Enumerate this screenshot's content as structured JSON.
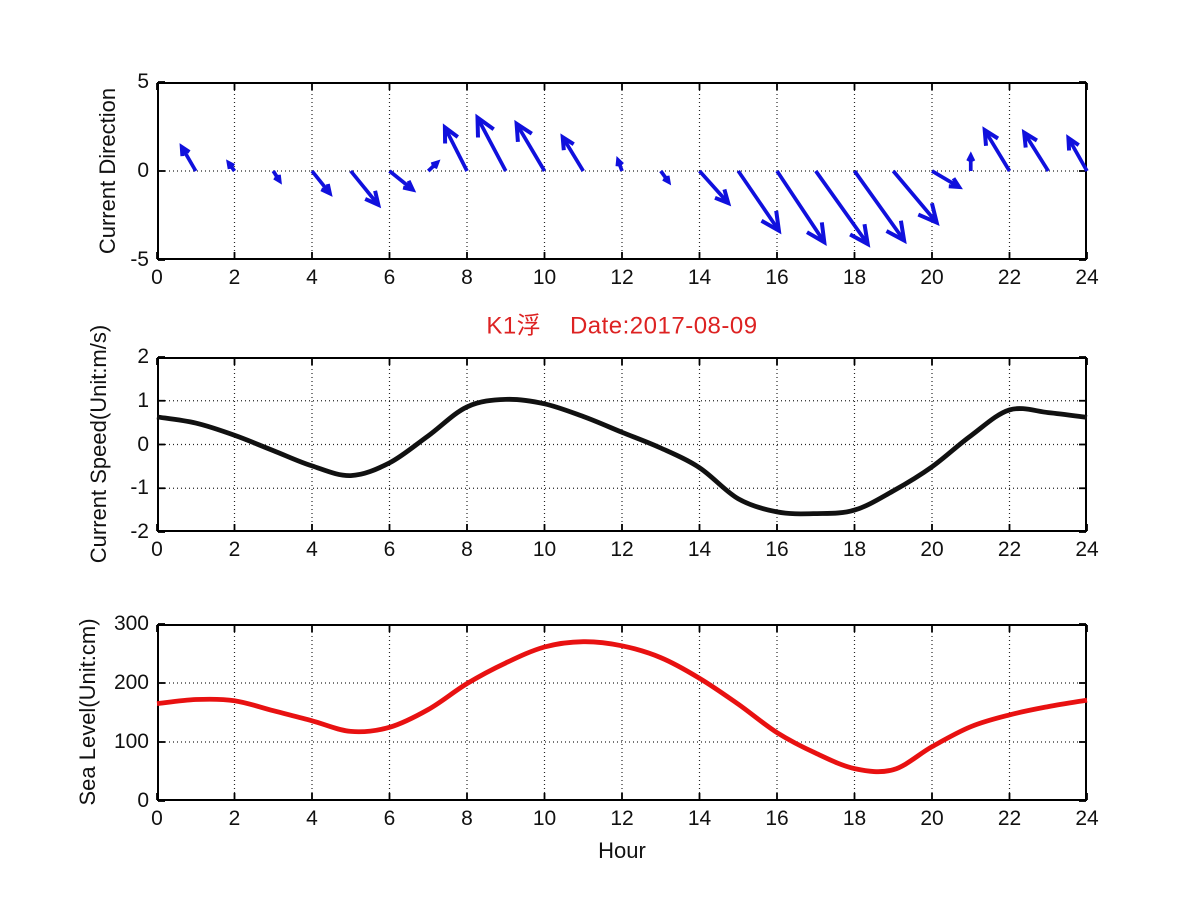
{
  "chart_data": [
    {
      "type": "quiver",
      "name": "current-direction",
      "ylabel": "Current Direction",
      "xlim": [
        0,
        24
      ],
      "ylim": [
        -5,
        5
      ],
      "xticks": [
        0,
        2,
        4,
        6,
        8,
        10,
        12,
        14,
        16,
        18,
        20,
        22,
        24
      ],
      "yticks": [
        5,
        0,
        -5
      ],
      "grid": "dotted, at interior ticks",
      "color": "#1010dd",
      "hours": [
        1,
        2,
        3,
        4,
        5,
        6,
        7,
        8,
        9,
        10,
        11,
        12,
        13,
        14,
        15,
        16,
        17,
        18,
        19,
        20,
        21,
        22,
        23,
        24
      ],
      "u": [
        -0.36,
        -0.15,
        0.16,
        0.46,
        0.71,
        0.6,
        0.23,
        -0.57,
        -0.73,
        -0.72,
        -0.53,
        -0.1,
        0.2,
        0.74,
        1.05,
        1.22,
        1.34,
        1.28,
        1.12,
        0.7,
        0.0,
        -0.64,
        -0.62,
        -0.48
      ],
      "v": [
        1.35,
        0.45,
        -0.55,
        -1.25,
        -1.9,
        -1.05,
        0.47,
        2.45,
        3.0,
        2.65,
        1.9,
        0.6,
        -0.6,
        -1.8,
        -3.35,
        -4.0,
        -4.1,
        -3.9,
        -2.9,
        -0.9,
        0.85,
        2.3,
        2.15,
        1.85
      ]
    },
    {
      "type": "line",
      "name": "current-speed",
      "title": "K1浮    Date:2017-08-09",
      "title_color": "#dd2222",
      "ylabel": "Current Speed(Unit:m/s)",
      "xlim": [
        0,
        24
      ],
      "ylim": [
        -2,
        2
      ],
      "xticks": [
        0,
        2,
        4,
        6,
        8,
        10,
        12,
        14,
        16,
        18,
        20,
        22,
        24
      ],
      "yticks": [
        2,
        1,
        0,
        -1,
        -2
      ],
      "grid": "dotted, at interior ticks",
      "color": "#111111",
      "x": [
        0,
        1,
        2,
        3,
        4,
        5,
        6,
        7,
        8,
        9,
        10,
        11,
        12,
        13,
        14,
        15,
        16,
        17,
        18,
        19,
        20,
        21,
        22,
        23,
        24
      ],
      "y": [
        0.63,
        0.49,
        0.21,
        -0.14,
        -0.49,
        -0.71,
        -0.42,
        0.2,
        0.86,
        1.03,
        0.93,
        0.64,
        0.28,
        -0.08,
        -0.53,
        -1.24,
        -1.54,
        -1.58,
        -1.5,
        -1.06,
        -0.51,
        0.2,
        0.79,
        0.73,
        0.62
      ]
    },
    {
      "type": "line",
      "name": "sea-level",
      "ylabel": "Sea Level(Unit:cm)",
      "xlabel": "Hour",
      "xlim": [
        0,
        24
      ],
      "ylim": [
        0,
        300
      ],
      "xticks": [
        0,
        2,
        4,
        6,
        8,
        10,
        12,
        14,
        16,
        18,
        20,
        22,
        24
      ],
      "yticks": [
        300,
        200,
        100,
        0
      ],
      "grid": "dotted, at interior ticks",
      "color": "#e81111",
      "x": [
        0,
        1,
        2,
        3,
        4,
        5,
        6,
        7,
        8,
        9,
        10,
        11,
        12,
        13,
        14,
        15,
        16,
        17,
        18,
        19,
        20,
        21,
        22,
        23,
        24
      ],
      "y": [
        165,
        172,
        170,
        153,
        136,
        118,
        125,
        155,
        199,
        234,
        261,
        270,
        263,
        243,
        208,
        164,
        116,
        81,
        55,
        53,
        92,
        126,
        146,
        160,
        171
      ]
    }
  ]
}
